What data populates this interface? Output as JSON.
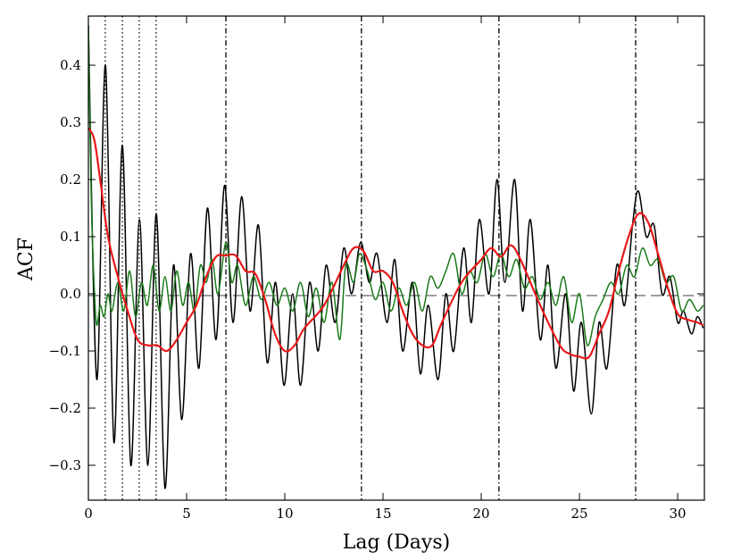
{
  "chart_data": {
    "type": "line",
    "xlabel": "Lag (Days)",
    "ylabel": "ACF",
    "xlim": [
      0,
      31.36
    ],
    "ylim": [
      -0.361,
      0.486
    ],
    "xticks": [
      0,
      5,
      10,
      15,
      20,
      25,
      30
    ],
    "yticks": [
      {
        "value": -0.3,
        "label": "−0.3"
      },
      {
        "value": -0.2,
        "label": "−0.2"
      },
      {
        "value": -0.1,
        "label": "−0.1"
      },
      {
        "value": 0,
        "label": "0.0"
      },
      0.1,
      0.2,
      0.3,
      0.4
    ],
    "hlines": [
      {
        "y": -0.003,
        "style": "dashed",
        "color": "#555555"
      }
    ],
    "vlines": [
      {
        "x": 0.86,
        "style": "dotted",
        "color": "#000000"
      },
      {
        "x": 1.73,
        "style": "dotted",
        "color": "#000000"
      },
      {
        "x": 2.59,
        "style": "dotted",
        "color": "#000000"
      },
      {
        "x": 3.45,
        "style": "dotted",
        "color": "#000000"
      },
      {
        "x": 7.0,
        "style": "dashdot",
        "color": "#000000"
      },
      {
        "x": 13.9,
        "style": "dashdot",
        "color": "#000000"
      },
      {
        "x": 20.9,
        "style": "dashdot",
        "color": "#000000"
      },
      {
        "x": 27.86,
        "style": "dashdot",
        "color": "#000000"
      }
    ],
    "series": [
      {
        "color": "#000000",
        "width": 1.5,
        "x": [
          0,
          0.43,
          0.87,
          1.3,
          1.73,
          2.16,
          2.6,
          3.03,
          3.46,
          3.9,
          4.33,
          4.76,
          5.2,
          5.63,
          6.06,
          6.5,
          6.93,
          7.36,
          7.8,
          8.23,
          8.66,
          9.1,
          9.53,
          9.96,
          10.4,
          10.8,
          11.26,
          11.7,
          12.1,
          12.56,
          13.0,
          13.4,
          13.86,
          14.3,
          14.7,
          15.2,
          15.6,
          16.0,
          16.5,
          16.9,
          17.3,
          17.8,
          18.2,
          18.6,
          19.1,
          19.5,
          19.9,
          20.4,
          20.8,
          21.2,
          21.7,
          22.1,
          22.5,
          23.0,
          23.4,
          23.8,
          24.3,
          24.7,
          25.1,
          25.6,
          26.0,
          26.4,
          26.9,
          27.3,
          27.7,
          28.0,
          28.4,
          28.8,
          29.2,
          29.6,
          30.0,
          30.3,
          30.7,
          31.0,
          31.3
        ],
        "values": [
          0.47,
          -0.15,
          0.4,
          -0.26,
          0.26,
          -0.3,
          0.13,
          -0.3,
          0.14,
          -0.34,
          0.05,
          -0.22,
          0.07,
          -0.13,
          0.15,
          -0.08,
          0.19,
          -0.05,
          0.17,
          -0.03,
          0.12,
          -0.12,
          0.02,
          -0.16,
          0.0,
          -0.16,
          0.02,
          -0.1,
          0.05,
          -0.05,
          0.08,
          0.0,
          0.09,
          0.02,
          0.07,
          -0.05,
          0.06,
          -0.1,
          0.02,
          -0.14,
          -0.02,
          -0.15,
          0.0,
          -0.1,
          0.08,
          -0.05,
          0.13,
          0.0,
          0.2,
          0.02,
          0.2,
          -0.03,
          0.13,
          -0.08,
          0.05,
          -0.13,
          0.0,
          -0.17,
          -0.05,
          -0.21,
          -0.05,
          -0.13,
          0.05,
          -0.02,
          0.12,
          0.18,
          0.1,
          0.12,
          0.0,
          0.03,
          -0.05,
          -0.03,
          -0.07,
          -0.04,
          -0.06
        ]
      },
      {
        "color": "#1a7a1a",
        "width": 1.5,
        "x": [
          0,
          0.1,
          0.2,
          0.4,
          0.6,
          0.8,
          1.0,
          1.2,
          1.5,
          1.8,
          2.1,
          2.4,
          2.7,
          3.0,
          3.3,
          3.6,
          3.9,
          4.2,
          4.5,
          4.8,
          5.1,
          5.4,
          5.7,
          6.0,
          6.3,
          6.6,
          7.0,
          7.3,
          7.6,
          8.0,
          8.4,
          8.8,
          9.2,
          9.6,
          10.0,
          10.4,
          10.8,
          11.2,
          11.6,
          12.0,
          12.4,
          12.8,
          13.1,
          13.5,
          13.8,
          14.2,
          14.6,
          15.0,
          15.4,
          15.8,
          16.2,
          16.6,
          17.0,
          17.4,
          17.8,
          18.2,
          18.6,
          19.0,
          19.4,
          19.8,
          20.2,
          20.6,
          21.0,
          21.4,
          21.8,
          22.2,
          22.6,
          23.0,
          23.4,
          23.8,
          24.2,
          24.6,
          25.0,
          25.4,
          25.8,
          26.2,
          26.6,
          27.0,
          27.4,
          27.8,
          28.2,
          28.6,
          29.0,
          29.4,
          29.8,
          30.2,
          30.6,
          31.0,
          31.3
        ],
        "values": [
          0.47,
          0.25,
          0.1,
          -0.05,
          -0.02,
          -0.04,
          0.0,
          -0.03,
          0.02,
          -0.03,
          0.04,
          -0.04,
          0.02,
          -0.02,
          0.05,
          -0.03,
          0.03,
          -0.03,
          0.04,
          -0.02,
          0.02,
          -0.03,
          0.05,
          0.02,
          0.06,
          0.0,
          0.09,
          0.02,
          0.05,
          -0.02,
          0.03,
          -0.01,
          0.02,
          -0.02,
          0.01,
          -0.03,
          0.02,
          -0.04,
          0.01,
          -0.05,
          0.02,
          -0.08,
          0.05,
          0.02,
          0.07,
          0.04,
          -0.01,
          0.02,
          -0.03,
          0.01,
          -0.02,
          0.02,
          -0.03,
          0.03,
          0.01,
          0.04,
          0.07,
          0.0,
          0.04,
          0.02,
          0.07,
          0.03,
          0.07,
          0.03,
          0.06,
          0.01,
          0.03,
          -0.01,
          0.02,
          -0.02,
          0.03,
          -0.05,
          0.0,
          -0.09,
          -0.04,
          -0.01,
          0.02,
          0.0,
          0.05,
          0.03,
          0.08,
          0.05,
          0.06,
          0.02,
          0.03,
          -0.03,
          -0.01,
          -0.03,
          -0.02
        ]
      },
      {
        "color": "#e8191b",
        "width": 2.2,
        "x": [
          0,
          0.3,
          0.6,
          1.0,
          1.5,
          2.0,
          2.5,
          3.0,
          3.5,
          4.0,
          4.5,
          5.0,
          5.5,
          6.0,
          6.5,
          7.0,
          7.5,
          8.0,
          8.5,
          9.0,
          9.5,
          10.0,
          10.5,
          11.0,
          12.0,
          13.0,
          13.5,
          14.0,
          14.5,
          15.0,
          15.5,
          16.0,
          16.5,
          17.0,
          17.5,
          18.0,
          19.0,
          20.0,
          20.5,
          21.0,
          21.5,
          22.0,
          23.0,
          24.0,
          24.5,
          25.0,
          25.5,
          26.0,
          26.5,
          27.0,
          27.5,
          28.0,
          28.5,
          29.0,
          29.5,
          30.0,
          30.5,
          31.0,
          31.3
        ],
        "values": [
          0.29,
          0.27,
          0.2,
          0.1,
          0.03,
          -0.03,
          -0.08,
          -0.09,
          -0.09,
          -0.1,
          -0.08,
          -0.05,
          -0.02,
          0.03,
          0.065,
          0.067,
          0.067,
          0.04,
          0.035,
          -0.01,
          -0.07,
          -0.1,
          -0.09,
          -0.06,
          -0.02,
          0.05,
          0.08,
          0.075,
          0.04,
          0.04,
          0.02,
          -0.03,
          -0.07,
          -0.09,
          -0.09,
          -0.05,
          0.02,
          0.06,
          0.08,
          0.065,
          0.085,
          0.06,
          -0.02,
          -0.09,
          -0.105,
          -0.11,
          -0.11,
          -0.07,
          -0.03,
          0.04,
          0.1,
          0.14,
          0.125,
          0.07,
          0.01,
          -0.035,
          -0.045,
          -0.05,
          -0.055
        ]
      }
    ]
  }
}
